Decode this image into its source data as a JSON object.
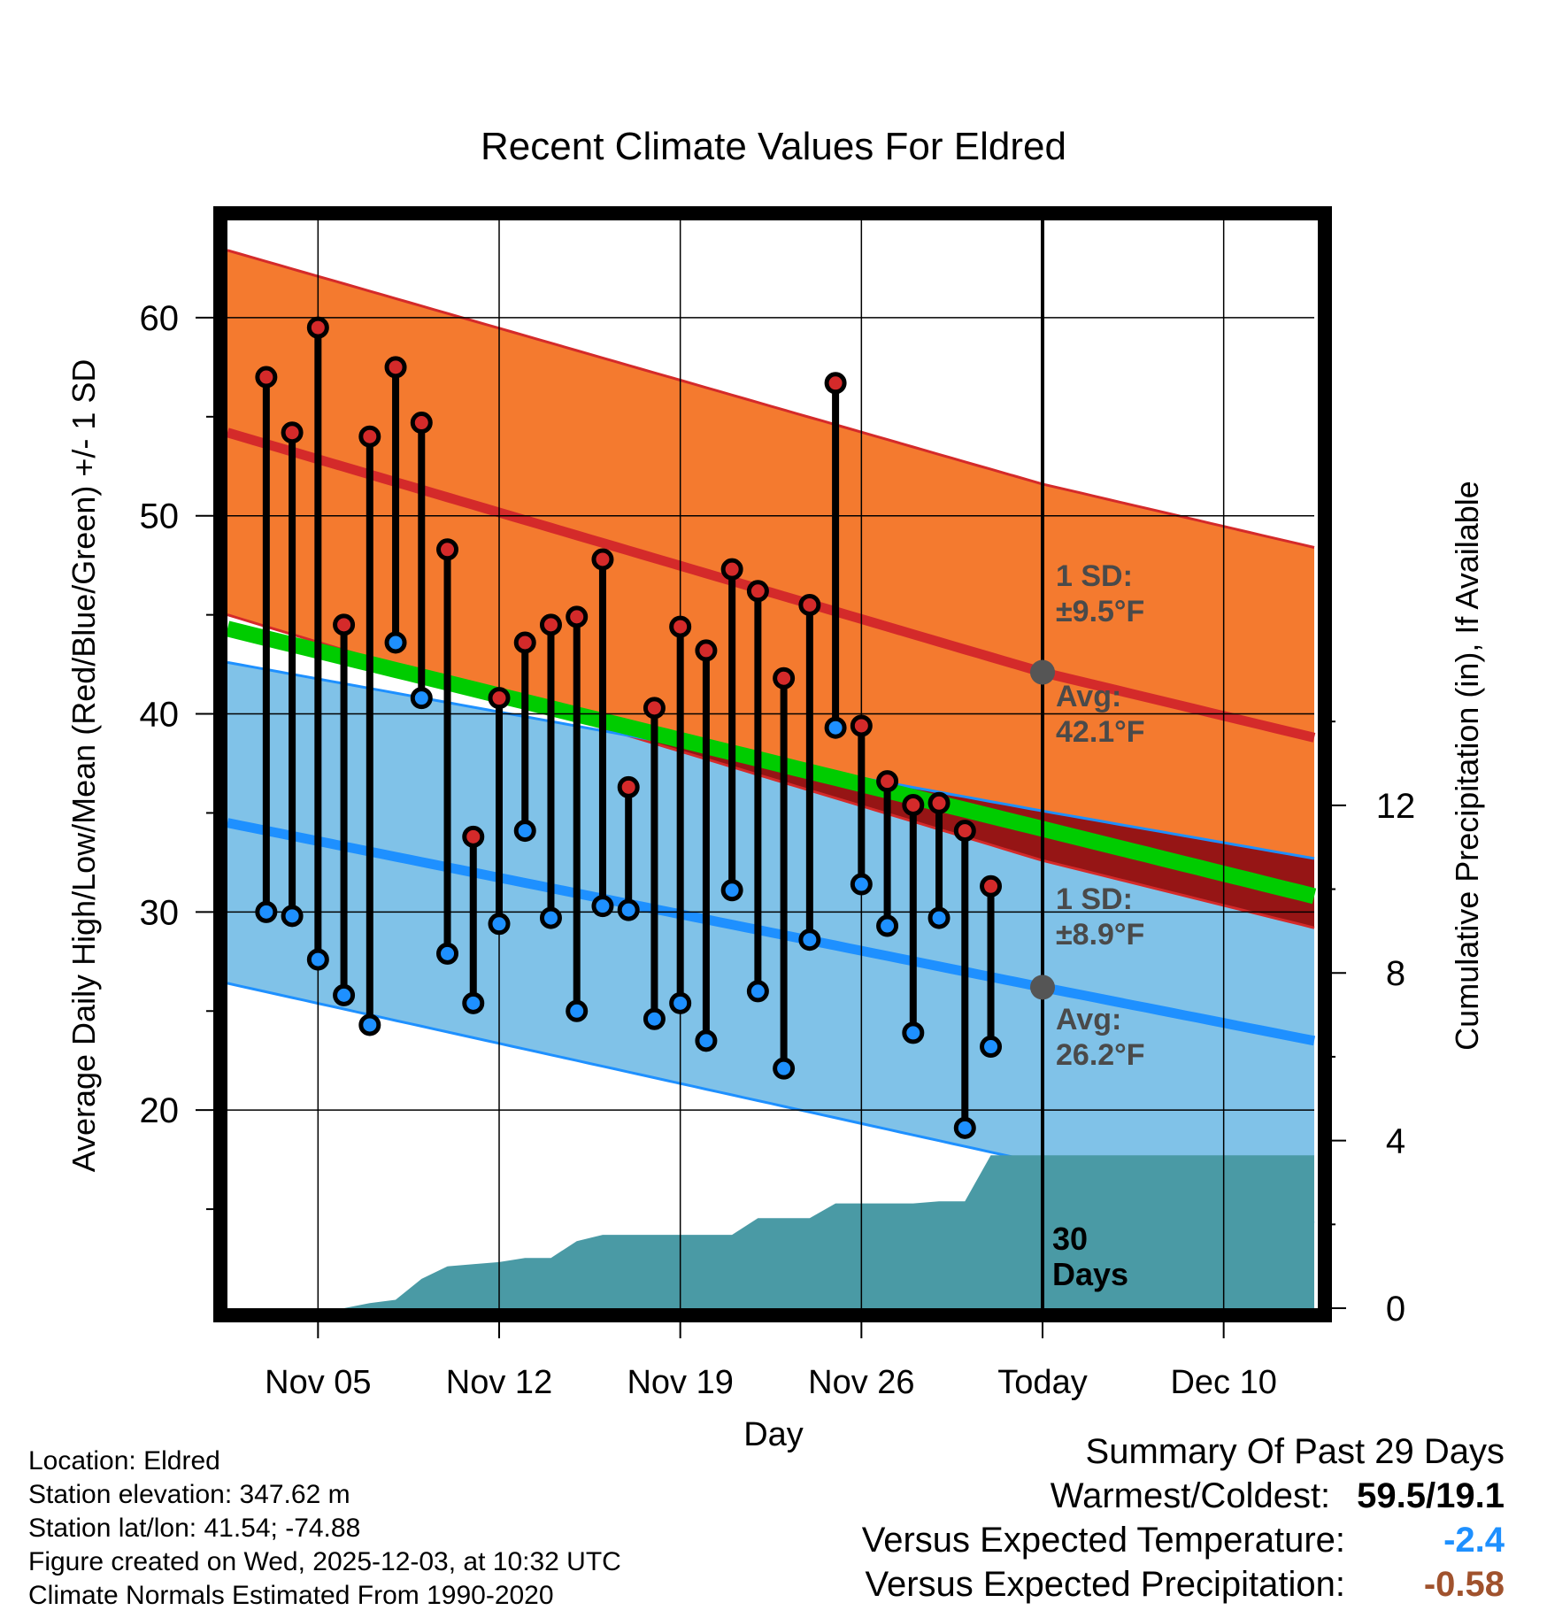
{
  "chart_data": {
    "type": "line",
    "title": "Recent Climate Values For Eldred",
    "xlabel": "Day",
    "ylabel": "Average Daily High/Low/Mean (Red/Blue/Green) +/- 1 SD",
    "y2label": "Cumulative Precipitation (in), If Available",
    "ylim": [
      10,
      65
    ],
    "y2lim": [
      0,
      26
    ],
    "xlim": [
      -1.5,
      40.5
    ],
    "y_ticks": [
      "20",
      "30",
      "40",
      "50",
      "60"
    ],
    "y2_ticks": [
      "0",
      "4",
      "8",
      "12"
    ],
    "x_ticks": [
      {
        "day": 2,
        "label": "Nov 05"
      },
      {
        "day": 9,
        "label": "Nov 12"
      },
      {
        "day": 16,
        "label": "Nov 19"
      },
      {
        "day": 23,
        "label": "Nov 26"
      },
      {
        "day": 30,
        "label": "Today"
      },
      {
        "day": 37,
        "label": "Dec 10"
      }
    ],
    "today_day": 30,
    "normals": {
      "days": [
        -1.5,
        30,
        40.5
      ],
      "high_avg": [
        54.2,
        42.1,
        38.8
      ],
      "high_sd": [
        9.2,
        9.5,
        9.6
      ],
      "low_avg": [
        34.5,
        26.2,
        23.5
      ],
      "low_sd": [
        8.1,
        8.9,
        9.2
      ],
      "mean_avg": [
        44.3,
        34.2,
        30.8
      ]
    },
    "series": [
      {
        "name": "Daily High",
        "color": "#d42a2a",
        "values": [
          57.0,
          54.2,
          59.5,
          44.5,
          54.0,
          57.5,
          54.7,
          48.3,
          33.8,
          40.8,
          43.6,
          44.5,
          44.9,
          47.8,
          36.3,
          40.3,
          44.4,
          43.2,
          47.3,
          46.2,
          41.8,
          45.5,
          56.7,
          39.4,
          36.6,
          35.4,
          35.5,
          34.1,
          31.3
        ]
      },
      {
        "name": "Daily Low",
        "color": "#1e90ff",
        "values": [
          30.0,
          29.8,
          27.6,
          25.8,
          24.3,
          43.6,
          40.8,
          27.9,
          25.4,
          29.4,
          34.1,
          29.7,
          25.0,
          30.3,
          30.1,
          24.6,
          25.4,
          23.5,
          31.1,
          26.0,
          22.1,
          28.6,
          39.3,
          31.4,
          29.3,
          23.9,
          29.7,
          19.1,
          23.2
        ]
      }
    ],
    "precip_cumulative": [
      0,
      0,
      0,
      0,
      0.12,
      0.2,
      0.7,
      1.0,
      1.05,
      1.1,
      1.2,
      1.2,
      1.6,
      1.75,
      1.75,
      1.75,
      1.75,
      1.75,
      1.75,
      2.15,
      2.15,
      2.15,
      2.5,
      2.5,
      2.5,
      2.5,
      2.55,
      2.55,
      3.65,
      3.65,
      3.65
    ],
    "labels": {
      "high_sd": [
        "1 SD:",
        "±9.5°F"
      ],
      "high_avg": [
        "Avg:",
        "42.1°F"
      ],
      "low_sd": [
        "1 SD:",
        "±8.9°F"
      ],
      "low_avg": [
        "Avg:",
        "26.2°F"
      ],
      "window": [
        "30",
        "Days"
      ]
    }
  },
  "info": {
    "location": "Location: Eldred",
    "elevation": "Station elevation: 347.62 m",
    "latlon": "Station lat/lon: 41.54; -74.88",
    "created": "Figure created on Wed, 2025-12-03, at 10:32 UTC",
    "normals": "Climate Normals Estimated From 1990-2020"
  },
  "summary": {
    "title": "Summary Of Past 29 Days",
    "warmest_label": "Warmest/Coldest:",
    "warmest_value": "59.5/19.1",
    "temp_label": "Versus Expected Temperature:",
    "temp_value": "-2.4",
    "temp_color": "#1e90ff",
    "precip_label": "Versus Expected Precipitation:",
    "precip_value": "-0.58",
    "precip_color": "#a0522d"
  }
}
